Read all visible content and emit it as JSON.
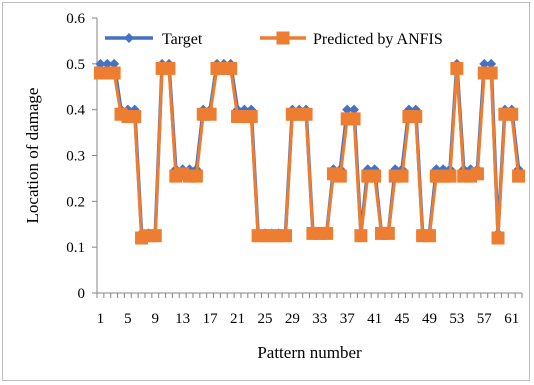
{
  "chart_data": {
    "type": "line",
    "xlabel": "Pattern number",
    "ylabel": "Location of damage",
    "ylim": [
      0,
      0.6
    ],
    "yticks": [
      "0",
      "0.1",
      "0.2",
      "0.3",
      "0.4",
      "0.5",
      "0.6"
    ],
    "xticks": [
      "1",
      "5",
      "9",
      "13",
      "17",
      "21",
      "25",
      "29",
      "33",
      "37",
      "41",
      "45",
      "49",
      "53",
      "57",
      "61"
    ],
    "legend_position": "top",
    "x": [
      1,
      2,
      3,
      4,
      5,
      6,
      7,
      8,
      9,
      10,
      11,
      12,
      13,
      14,
      15,
      16,
      17,
      18,
      19,
      20,
      21,
      22,
      23,
      24,
      25,
      26,
      27,
      28,
      29,
      30,
      31,
      32,
      33,
      34,
      35,
      36,
      37,
      38,
      39,
      40,
      41,
      42,
      43,
      44,
      45,
      46,
      47,
      48,
      49,
      50,
      51,
      52,
      53,
      54,
      55,
      56,
      57,
      58,
      59,
      60,
      61,
      62
    ],
    "series": [
      {
        "name": "Target",
        "color": "#4472C4",
        "marker": "diamond",
        "values": [
          0.5,
          0.5,
          0.5,
          0.4,
          0.4,
          0.4,
          0.13,
          0.13,
          0.13,
          0.5,
          0.5,
          0.27,
          0.27,
          0.27,
          0.27,
          0.4,
          0.4,
          0.5,
          0.5,
          0.5,
          0.4,
          0.4,
          0.4,
          0.13,
          0.13,
          0.13,
          0.13,
          0.13,
          0.4,
          0.4,
          0.4,
          0.13,
          0.13,
          0.13,
          0.27,
          0.27,
          0.4,
          0.4,
          0.13,
          0.27,
          0.27,
          0.13,
          0.13,
          0.27,
          0.27,
          0.4,
          0.4,
          0.13,
          0.13,
          0.27,
          0.27,
          0.27,
          0.5,
          0.27,
          0.27,
          0.27,
          0.5,
          0.5,
          0.13,
          0.4,
          0.4,
          0.27
        ]
      },
      {
        "name": "Predicted by ANFIS",
        "color": "#ED7D31",
        "marker": "square",
        "values": [
          0.48,
          0.48,
          0.48,
          0.39,
          0.385,
          0.385,
          0.12,
          0.125,
          0.125,
          0.49,
          0.49,
          0.255,
          0.26,
          0.255,
          0.255,
          0.39,
          0.39,
          0.49,
          0.49,
          0.49,
          0.385,
          0.385,
          0.385,
          0.125,
          0.125,
          0.125,
          0.125,
          0.125,
          0.39,
          0.39,
          0.39,
          0.13,
          0.13,
          0.13,
          0.26,
          0.255,
          0.38,
          0.38,
          0.125,
          0.255,
          0.255,
          0.13,
          0.13,
          0.255,
          0.255,
          0.385,
          0.385,
          0.125,
          0.125,
          0.255,
          0.255,
          0.255,
          0.49,
          0.255,
          0.255,
          0.26,
          0.48,
          0.48,
          0.12,
          0.39,
          0.39,
          0.255
        ]
      }
    ]
  }
}
